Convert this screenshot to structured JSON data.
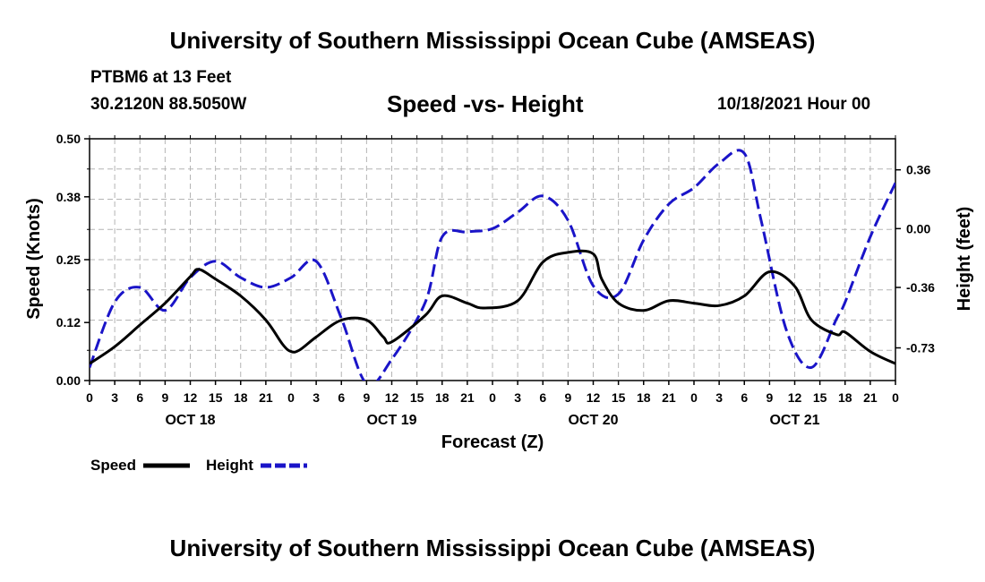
{
  "header": {
    "title": "University of Southern Mississippi Ocean Cube (AMSEAS)",
    "station": "PTBM6 at 13 Feet",
    "coords": "30.2120N  88.5050W",
    "subtitle": "Speed -vs- Height",
    "date": "10/18/2021 Hour 00"
  },
  "footer": {
    "title": "University of Southern Mississippi Ocean Cube (AMSEAS)"
  },
  "chart_data": {
    "type": "line",
    "xlabel": "Forecast (Z)",
    "ylabel": "Speed (Knots)",
    "y2label": "Height (feet)",
    "x_hour_ticks": [
      "0",
      "3",
      "6",
      "9",
      "12",
      "15",
      "18",
      "21",
      "0",
      "3",
      "6",
      "9",
      "12",
      "15",
      "18",
      "21",
      "0",
      "3",
      "6",
      "9",
      "12",
      "15",
      "18",
      "21",
      "0",
      "3",
      "6",
      "9",
      "12",
      "15",
      "18",
      "21",
      "0"
    ],
    "x_day_labels": [
      "OCT 18",
      "OCT 19",
      "OCT 20",
      "OCT 21"
    ],
    "xlim": [
      0,
      96
    ],
    "ylim": [
      0,
      0.5
    ],
    "yticks": [
      "0.00",
      "0.12",
      "0.25",
      "0.38",
      "0.50"
    ],
    "y2lim": [
      -0.93,
      0.55
    ],
    "y2ticks": [
      "0.36",
      "0.00",
      "-0.36",
      "-0.73"
    ],
    "grid": true,
    "series": [
      {
        "name": "Speed",
        "axis": "left",
        "color": "#000000",
        "dash": "solid",
        "x": [
          0,
          3,
          6,
          9,
          12,
          13,
          15,
          18,
          21,
          23,
          24,
          25,
          27,
          30,
          33,
          35,
          36,
          40,
          42,
          45,
          47,
          51,
          54,
          57,
          60,
          61,
          63,
          66,
          69,
          72,
          75,
          78,
          81,
          84,
          86,
          89,
          90,
          93,
          96
        ],
        "y": [
          0.035,
          0.07,
          0.115,
          0.16,
          0.215,
          0.23,
          0.21,
          0.175,
          0.125,
          0.075,
          0.06,
          0.063,
          0.09,
          0.125,
          0.125,
          0.09,
          0.08,
          0.135,
          0.175,
          0.16,
          0.15,
          0.165,
          0.245,
          0.265,
          0.262,
          0.21,
          0.16,
          0.145,
          0.165,
          0.16,
          0.155,
          0.175,
          0.225,
          0.195,
          0.125,
          0.095,
          0.1,
          0.06,
          0.035
        ]
      },
      {
        "name": "Height",
        "axis": "right",
        "color": "#1a14c8",
        "dash": "dashed",
        "x": [
          0,
          3,
          6,
          9,
          12,
          15,
          18,
          21,
          24,
          27,
          30,
          33,
          36,
          40,
          42,
          45,
          48,
          51,
          54,
          57,
          60,
          63,
          66,
          69,
          72,
          75,
          78,
          80,
          83,
          86,
          89,
          90,
          93,
          96
        ],
        "y": [
          -0.85,
          -0.45,
          -0.36,
          -0.5,
          -0.3,
          -0.2,
          -0.3,
          -0.36,
          -0.3,
          -0.2,
          -0.55,
          -0.95,
          -0.8,
          -0.45,
          -0.05,
          -0.02,
          0.0,
          0.1,
          0.2,
          0.05,
          -0.35,
          -0.4,
          -0.07,
          0.15,
          0.25,
          0.4,
          0.46,
          0.05,
          -0.62,
          -0.85,
          -0.55,
          -0.45,
          -0.05,
          0.28
        ]
      }
    ],
    "legend": [
      {
        "label": "Speed",
        "color": "#000000",
        "dash": "solid"
      },
      {
        "label": "Height",
        "color": "#1a14c8",
        "dash": "dashed"
      }
    ]
  }
}
